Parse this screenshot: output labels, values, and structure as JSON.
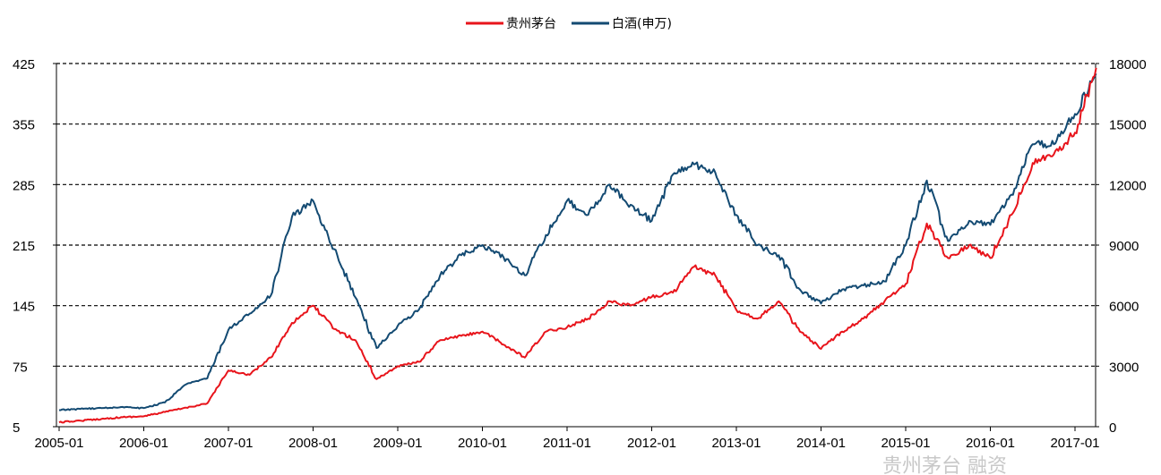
{
  "chart_data": {
    "type": "line",
    "title": "",
    "xlabel": "",
    "ylabel_left": "",
    "ylabel_right": "",
    "x_tick_labels": [
      "2005-01",
      "2006-01",
      "2007-01",
      "2008-01",
      "2009-01",
      "2010-01",
      "2011-01",
      "2012-01",
      "2013-01",
      "2014-01",
      "2015-01",
      "2016-01",
      "2017-01"
    ],
    "x_range": [
      "2005-01",
      "2017-04"
    ],
    "y_left": {
      "range": [
        5,
        425
      ],
      "ticks": [
        5,
        75,
        145,
        215,
        285,
        355,
        425
      ]
    },
    "y_right": {
      "range": [
        0,
        18000
      ],
      "ticks": [
        0,
        3000,
        6000,
        9000,
        12000,
        15000,
        18000
      ]
    },
    "grid": "horizontal dashed",
    "legend_position": "top-center",
    "series": [
      {
        "name": "贵州茅台",
        "axis": "left",
        "color": "#e8141b",
        "points": [
          [
            "2005-01",
            10
          ],
          [
            "2005-04",
            12
          ],
          [
            "2005-07",
            14
          ],
          [
            "2005-10",
            16
          ],
          [
            "2006-01",
            17
          ],
          [
            "2006-04",
            22
          ],
          [
            "2006-07",
            27
          ],
          [
            "2006-10",
            32
          ],
          [
            "2007-01",
            70
          ],
          [
            "2007-04",
            65
          ],
          [
            "2007-07",
            85
          ],
          [
            "2007-10",
            125
          ],
          [
            "2008-01",
            145
          ],
          [
            "2008-04",
            118
          ],
          [
            "2008-07",
            105
          ],
          [
            "2008-10",
            60
          ],
          [
            "2009-01",
            75
          ],
          [
            "2009-04",
            80
          ],
          [
            "2009-07",
            105
          ],
          [
            "2009-10",
            110
          ],
          [
            "2010-01",
            115
          ],
          [
            "2010-04",
            100
          ],
          [
            "2010-07",
            85
          ],
          [
            "2010-10",
            115
          ],
          [
            "2011-01",
            120
          ],
          [
            "2011-04",
            130
          ],
          [
            "2011-07",
            150
          ],
          [
            "2011-10",
            145
          ],
          [
            "2012-01",
            155
          ],
          [
            "2012-04",
            160
          ],
          [
            "2012-07",
            190
          ],
          [
            "2012-10",
            180
          ],
          [
            "2013-01",
            140
          ],
          [
            "2013-04",
            130
          ],
          [
            "2013-07",
            150
          ],
          [
            "2013-10",
            115
          ],
          [
            "2014-01",
            95
          ],
          [
            "2014-04",
            115
          ],
          [
            "2014-07",
            130
          ],
          [
            "2014-10",
            150
          ],
          [
            "2015-01",
            170
          ],
          [
            "2015-04",
            240
          ],
          [
            "2015-07",
            200
          ],
          [
            "2015-10",
            215
          ],
          [
            "2016-01",
            200
          ],
          [
            "2016-04",
            250
          ],
          [
            "2016-07",
            310
          ],
          [
            "2016-10",
            320
          ],
          [
            "2017-01",
            345
          ],
          [
            "2017-04",
            420
          ]
        ]
      },
      {
        "name": "白酒(申万)",
        "axis": "right",
        "color": "#134a72",
        "points": [
          [
            "2005-01",
            820
          ],
          [
            "2005-04",
            880
          ],
          [
            "2005-07",
            920
          ],
          [
            "2005-10",
            980
          ],
          [
            "2006-01",
            920
          ],
          [
            "2006-04",
            1200
          ],
          [
            "2006-07",
            2100
          ],
          [
            "2006-10",
            2400
          ],
          [
            "2007-01",
            4800
          ],
          [
            "2007-04",
            5600
          ],
          [
            "2007-07",
            6500
          ],
          [
            "2007-10",
            10400
          ],
          [
            "2008-01",
            11200
          ],
          [
            "2008-04",
            8800
          ],
          [
            "2008-07",
            6400
          ],
          [
            "2008-10",
            3900
          ],
          [
            "2009-01",
            5000
          ],
          [
            "2009-04",
            5800
          ],
          [
            "2009-07",
            7500
          ],
          [
            "2009-10",
            8500
          ],
          [
            "2010-01",
            9000
          ],
          [
            "2010-04",
            8400
          ],
          [
            "2010-07",
            7500
          ],
          [
            "2010-10",
            9500
          ],
          [
            "2011-01",
            11200
          ],
          [
            "2011-04",
            10500
          ],
          [
            "2011-07",
            12000
          ],
          [
            "2011-10",
            11000
          ],
          [
            "2012-01",
            10200
          ],
          [
            "2012-04",
            12500
          ],
          [
            "2012-07",
            13000
          ],
          [
            "2012-10",
            12600
          ],
          [
            "2013-01",
            10500
          ],
          [
            "2013-04",
            9000
          ],
          [
            "2013-07",
            8500
          ],
          [
            "2013-10",
            6800
          ],
          [
            "2014-01",
            6100
          ],
          [
            "2014-04",
            6800
          ],
          [
            "2014-07",
            7000
          ],
          [
            "2014-10",
            7200
          ],
          [
            "2015-01",
            9000
          ],
          [
            "2015-04",
            12200
          ],
          [
            "2015-07",
            9200
          ],
          [
            "2015-10",
            10200
          ],
          [
            "2016-01",
            10000
          ],
          [
            "2016-04",
            11500
          ],
          [
            "2016-07",
            14000
          ],
          [
            "2016-10",
            14000
          ],
          [
            "2017-01",
            15500
          ],
          [
            "2017-04",
            17500
          ]
        ]
      }
    ]
  },
  "watermark": "贵州茅台 融资"
}
